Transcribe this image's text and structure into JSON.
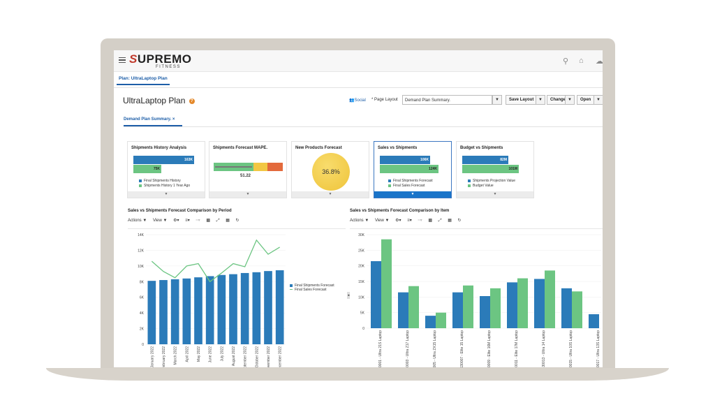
{
  "app": {
    "brand": "UPREMO",
    "brand_s": "S",
    "brand_sub": "FITNESS"
  },
  "topbar": {
    "icons": [
      "search-icon",
      "home-icon",
      "notifications-icon"
    ]
  },
  "plan_tab": "Plan: UltraLaptop Plan",
  "page": {
    "title": "UltraLaptop Plan",
    "help": "?",
    "social": "Social",
    "page_layout_label": "* Page Layout",
    "page_layout_value": "Demand Plan Summary.",
    "save_layout": "Save Layout",
    "change": "Change",
    "open": "Open"
  },
  "dashboard_tab": {
    "label": "Demand Plan Summary.",
    "close": "×"
  },
  "cards": [
    {
      "title": "Shipments History Analysis",
      "bar1": "163K",
      "bar2": "75K",
      "legend1": "Final Shipments History",
      "legend2": "Shipments History 1 Year Ago"
    },
    {
      "title": "Shipments Forecast MAPE.",
      "value": "51.22"
    },
    {
      "title": "New Products Forecast",
      "value": "36.8%"
    },
    {
      "title": "Sales vs Shipments",
      "bar1": "106K",
      "bar2": "124K",
      "legend1": "Final Shipments Forecast",
      "legend2": "Final Sales Forecast"
    },
    {
      "title": "Budget vs Shipments",
      "bar1": "82M",
      "bar2": "101M",
      "legend1": "Shipments Projection Value",
      "legend2": "Budget Value"
    }
  ],
  "colors": {
    "blue": "#2b7bb9",
    "green": "#6cc582",
    "accent": "#1d5ea8",
    "gauge_yellow": "#f2c744"
  },
  "toolbar": {
    "actions": "Actions ▼",
    "view": "View ▼"
  },
  "chart_data": [
    {
      "type": "bar",
      "title": "Sales vs Shipments Forecast Comparison by Period",
      "categories": [
        "January 2022",
        "February 2022",
        "March 2022",
        "April 2022",
        "May 2022",
        "June 2022",
        "July 2022",
        "August 2022",
        "September 2022",
        "October 2022",
        "November 2022",
        "December 2022"
      ],
      "series": [
        {
          "name": "Final Shipments Forecast",
          "type": "bar",
          "values": [
            8100,
            8200,
            8300,
            8400,
            8550,
            8700,
            8850,
            8950,
            9100,
            9200,
            9350,
            9450
          ]
        },
        {
          "name": "Final Sales Forecast",
          "type": "line",
          "values": [
            10600,
            9300,
            8500,
            10000,
            10300,
            8000,
            9100,
            10300,
            9900,
            13300,
            11500,
            12400
          ]
        }
      ],
      "yticks": [
        "0",
        "2K",
        "4K",
        "6K",
        "8K",
        "10K",
        "12K",
        "14K"
      ],
      "ylim": [
        0,
        14000
      ]
    },
    {
      "type": "bar",
      "title": "Sales vs Shipments Forecast Comparison by Item",
      "categories": [
        "AS30001 - Ultra 21S Laptop",
        "AS30003 - Ultra Z17 Laptop",
        "AS30005 - Ultra ZX15 Laptop",
        "AS30007 - Elite 15 Laptop",
        "AS30009 - Elite 16M Laptop",
        "AS30011 - Elite 17M Laptop",
        "AS30013 - Ultra 14 Laptop",
        "AS30015 - Ultra 10S Laptop",
        "AS30017 - Ultra 13S Laptop"
      ],
      "series": [
        {
          "name": "Final Shipments Forecast",
          "values": [
            21500,
            11500,
            4000,
            11500,
            10300,
            14700,
            15800,
            12800,
            4500
          ]
        },
        {
          "name": "Final Sales Forecast",
          "values": [
            28500,
            13500,
            5000,
            13700,
            12800,
            16000,
            18500,
            11800,
            0
          ]
        }
      ],
      "yticks": [
        "0",
        "5K",
        "10K",
        "15K",
        "20K",
        "25K",
        "30K"
      ],
      "ylim": [
        0,
        30000
      ]
    }
  ]
}
